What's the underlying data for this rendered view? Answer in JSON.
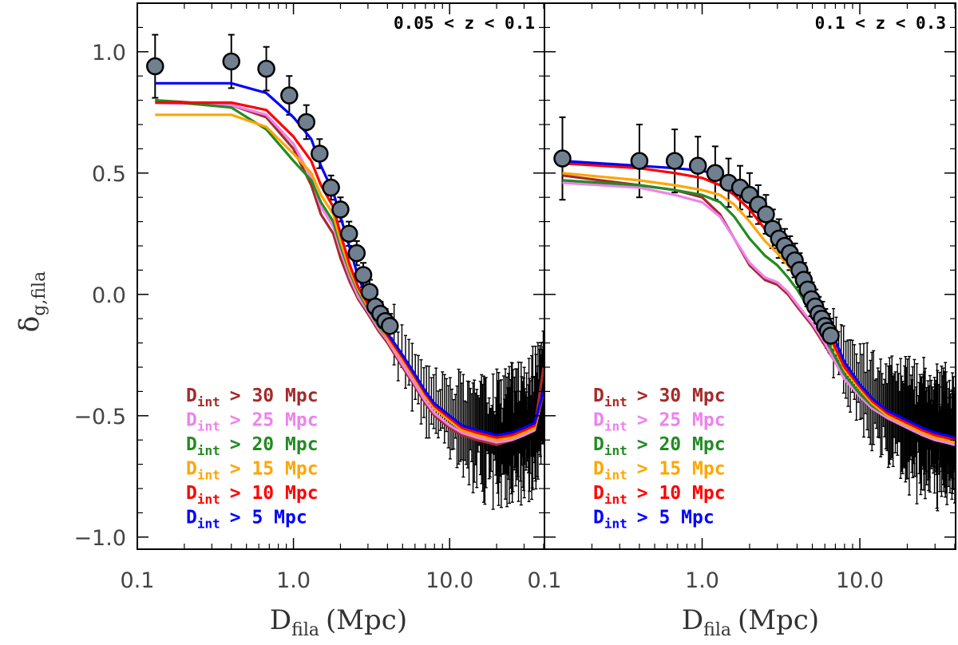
{
  "chart_data": {
    "type": "line",
    "ylabel": "δ",
    "ylabel_sub": "g,fila",
    "xlabel": "D",
    "xlabel_sub": "fila",
    "xlabel_unit": "(Mpc)",
    "xscale": "log",
    "ylim": [
      -1.05,
      1.2
    ],
    "y_ticks": [
      {
        "value": 1.0,
        "label": "1.0"
      },
      {
        "value": 0.5,
        "label": "0.5"
      },
      {
        "value": 0.0,
        "label": "0.0"
      },
      {
        "value": -0.5,
        "label": "−0.5"
      },
      {
        "value": -1.0,
        "label": "−1.0"
      }
    ],
    "legend_prefix": "D",
    "legend_sub": "int",
    "legend_placement": "bottom-left",
    "panels": [
      {
        "title": "0.05 < z < 0.1",
        "xlim": [
          0.1,
          40.5
        ],
        "x_ticks": [
          {
            "value": 0.1,
            "label": "0.1"
          },
          {
            "value": 1.0,
            "label": "1.0"
          },
          {
            "value": 10.0,
            "label": "10.0"
          }
        ],
        "observed": {
          "x": [
            0.13,
            0.4,
            0.67,
            0.94,
            1.21,
            1.47,
            1.74,
            2.0,
            2.27,
            2.54,
            2.8,
            3.07,
            3.34,
            3.6,
            3.87,
            4.14
          ],
          "y": [
            0.94,
            0.96,
            0.93,
            0.82,
            0.71,
            0.58,
            0.44,
            0.35,
            0.25,
            0.17,
            0.08,
            0.01,
            -0.05,
            -0.08,
            -0.11,
            -0.13
          ],
          "yerr": [
            0.13,
            0.11,
            0.09,
            0.08,
            0.07,
            0.06,
            0.05,
            0.05,
            0.05,
            0.05,
            0.05,
            0.05,
            0.05,
            0.05,
            0.05,
            0.05
          ]
        },
        "series": [
          {
            "name": "> 30 Mpc",
            "color": "#a52a2a",
            "x": [
              0.13,
              0.4,
              0.67,
              1.0,
              1.3,
              1.5,
              1.8,
              2.0,
              2.3,
              2.6,
              3.0,
              3.5,
              4.0,
              5.0,
              6.0,
              7.0,
              8.0,
              10.0,
              12.0,
              15.0,
              20.0,
              25.0,
              30.0,
              35.0,
              40.0
            ],
            "y": [
              0.8,
              0.78,
              0.73,
              0.6,
              0.45,
              0.33,
              0.25,
              0.15,
              0.05,
              -0.02,
              -0.08,
              -0.15,
              -0.2,
              -0.3,
              -0.38,
              -0.45,
              -0.5,
              -0.55,
              -0.58,
              -0.6,
              -0.62,
              -0.6,
              -0.58,
              -0.55,
              -0.3
            ]
          },
          {
            "name": "> 25 Mpc",
            "color": "#ee82ee",
            "x": [
              0.13,
              0.4,
              0.67,
              1.0,
              1.3,
              1.5,
              1.8,
              2.0,
              2.3,
              2.6,
              3.0,
              3.5,
              4.0,
              5.0,
              6.0,
              7.0,
              8.0,
              10.0,
              12.0,
              15.0,
              20.0,
              25.0,
              30.0,
              35.0,
              40.0
            ],
            "y": [
              0.79,
              0.78,
              0.74,
              0.62,
              0.48,
              0.36,
              0.28,
              0.18,
              0.07,
              -0.01,
              -0.07,
              -0.14,
              -0.19,
              -0.29,
              -0.37,
              -0.44,
              -0.49,
              -0.54,
              -0.57,
              -0.59,
              -0.61,
              -0.6,
              -0.58,
              -0.56,
              -0.4
            ]
          },
          {
            "name": "> 20 Mpc",
            "color": "#228b22",
            "x": [
              0.13,
              0.4,
              0.67,
              1.0,
              1.3,
              1.5,
              1.8,
              2.0,
              2.3,
              2.6,
              3.0,
              3.5,
              4.0,
              5.0,
              6.0,
              7.0,
              8.0,
              10.0,
              12.0,
              15.0,
              20.0,
              25.0,
              30.0,
              35.0,
              40.0
            ],
            "y": [
              0.8,
              0.77,
              0.68,
              0.55,
              0.47,
              0.38,
              0.3,
              0.2,
              0.09,
              0.01,
              -0.06,
              -0.13,
              -0.18,
              -0.27,
              -0.35,
              -0.42,
              -0.47,
              -0.52,
              -0.56,
              -0.58,
              -0.6,
              -0.59,
              -0.57,
              -0.55,
              -0.4
            ]
          },
          {
            "name": "> 15 Mpc",
            "color": "#ffa500",
            "x": [
              0.13,
              0.4,
              0.67,
              1.0,
              1.3,
              1.5,
              1.8,
              2.0,
              2.3,
              2.6,
              3.0,
              3.5,
              4.0,
              5.0,
              6.0,
              7.0,
              8.0,
              10.0,
              12.0,
              15.0,
              20.0,
              25.0,
              30.0,
              35.0,
              40.0
            ],
            "y": [
              0.74,
              0.74,
              0.69,
              0.58,
              0.5,
              0.41,
              0.33,
              0.22,
              0.1,
              0.02,
              -0.05,
              -0.12,
              -0.18,
              -0.27,
              -0.35,
              -0.42,
              -0.47,
              -0.52,
              -0.56,
              -0.58,
              -0.6,
              -0.59,
              -0.57,
              -0.55,
              -0.4
            ]
          },
          {
            "name": "> 10 Mpc",
            "color": "#ff0000",
            "x": [
              0.13,
              0.4,
              0.67,
              1.0,
              1.3,
              1.5,
              1.8,
              2.0,
              2.3,
              2.6,
              3.0,
              3.5,
              4.0,
              5.0,
              6.0,
              7.0,
              8.0,
              10.0,
              12.0,
              15.0,
              20.0,
              25.0,
              30.0,
              35.0,
              40.0
            ],
            "y": [
              0.79,
              0.79,
              0.76,
              0.65,
              0.55,
              0.45,
              0.36,
              0.25,
              0.12,
              0.03,
              -0.04,
              -0.11,
              -0.17,
              -0.26,
              -0.34,
              -0.41,
              -0.46,
              -0.51,
              -0.55,
              -0.57,
              -0.59,
              -0.58,
              -0.56,
              -0.54,
              -0.4
            ]
          },
          {
            "name": ">  5 Mpc",
            "color": "#0000ff",
            "x": [
              0.13,
              0.4,
              0.67,
              1.0,
              1.3,
              1.5,
              1.8,
              2.0,
              2.3,
              2.6,
              3.0,
              3.5,
              4.0,
              5.0,
              6.0,
              7.0,
              8.0,
              10.0,
              12.0,
              15.0,
              20.0,
              25.0,
              30.0,
              35.0,
              40.0
            ],
            "y": [
              0.87,
              0.87,
              0.83,
              0.73,
              0.64,
              0.53,
              0.42,
              0.32,
              0.19,
              0.07,
              -0.02,
              -0.1,
              -0.16,
              -0.25,
              -0.33,
              -0.4,
              -0.45,
              -0.5,
              -0.54,
              -0.56,
              -0.58,
              -0.57,
              -0.55,
              -0.53,
              -0.4
            ]
          }
        ]
      },
      {
        "title": "0.1 < z < 0.3",
        "xlim": [
          0.1,
          40.5
        ],
        "x_ticks": [
          {
            "value": 0.1,
            "label": "0.1"
          },
          {
            "value": 1.0,
            "label": "1.0"
          },
          {
            "value": 10.0,
            "label": "10.0"
          }
        ],
        "observed": {
          "x": [
            0.13,
            0.4,
            0.67,
            0.94,
            1.21,
            1.47,
            1.74,
            2.0,
            2.27,
            2.54,
            2.8,
            3.07,
            3.34,
            3.6,
            3.87,
            4.14,
            4.41,
            4.67,
            4.94,
            5.21,
            5.47,
            5.74,
            6.01,
            6.27,
            6.54
          ],
          "y": [
            0.56,
            0.55,
            0.55,
            0.53,
            0.5,
            0.46,
            0.44,
            0.41,
            0.37,
            0.33,
            0.27,
            0.23,
            0.2,
            0.17,
            0.14,
            0.1,
            0.06,
            0.02,
            -0.02,
            -0.05,
            -0.08,
            -0.1,
            -0.13,
            -0.15,
            -0.17
          ],
          "yerr": [
            0.17,
            0.15,
            0.13,
            0.12,
            0.11,
            0.1,
            0.09,
            0.09,
            0.08,
            0.08,
            0.08,
            0.08,
            0.07,
            0.07,
            0.07,
            0.07,
            0.07,
            0.07,
            0.07,
            0.07,
            0.07,
            0.07,
            0.07,
            0.07,
            0.07
          ]
        },
        "series": [
          {
            "name": "> 30 Mpc",
            "color": "#a52a2a",
            "x": [
              0.13,
              0.4,
              0.67,
              1.0,
              1.3,
              1.6,
              2.0,
              2.5,
              3.0,
              3.5,
              4.0,
              5.0,
              6.0,
              7.0,
              8.0,
              10.0,
              12.0,
              15.0,
              20.0,
              25.0,
              30.0,
              35.0,
              40.0
            ],
            "y": [
              0.49,
              0.45,
              0.43,
              0.4,
              0.33,
              0.23,
              0.12,
              0.06,
              0.04,
              0.0,
              -0.05,
              -0.13,
              -0.21,
              -0.28,
              -0.35,
              -0.42,
              -0.47,
              -0.51,
              -0.55,
              -0.58,
              -0.6,
              -0.61,
              -0.62
            ]
          },
          {
            "name": "> 25 Mpc",
            "color": "#ee82ee",
            "x": [
              0.13,
              0.4,
              0.67,
              1.0,
              1.3,
              1.6,
              2.0,
              2.5,
              3.0,
              3.5,
              4.0,
              5.0,
              6.0,
              7.0,
              8.0,
              10.0,
              12.0,
              15.0,
              20.0,
              25.0,
              30.0,
              35.0,
              40.0
            ],
            "y": [
              0.46,
              0.44,
              0.41,
              0.38,
              0.32,
              0.23,
              0.13,
              0.07,
              0.05,
              0.01,
              -0.04,
              -0.12,
              -0.2,
              -0.28,
              -0.35,
              -0.42,
              -0.47,
              -0.51,
              -0.55,
              -0.58,
              -0.6,
              -0.61,
              -0.62
            ]
          },
          {
            "name": "> 20 Mpc",
            "color": "#228b22",
            "x": [
              0.13,
              0.4,
              0.67,
              1.0,
              1.3,
              1.6,
              2.0,
              2.5,
              3.0,
              3.5,
              4.0,
              5.0,
              6.0,
              7.0,
              8.0,
              10.0,
              12.0,
              15.0,
              20.0,
              25.0,
              30.0,
              35.0,
              40.0
            ],
            "y": [
              0.47,
              0.45,
              0.43,
              0.41,
              0.38,
              0.32,
              0.23,
              0.16,
              0.12,
              0.07,
              0.02,
              -0.08,
              -0.17,
              -0.26,
              -0.33,
              -0.41,
              -0.46,
              -0.5,
              -0.54,
              -0.57,
              -0.59,
              -0.6,
              -0.61
            ]
          },
          {
            "name": "> 15 Mpc",
            "color": "#ffa500",
            "x": [
              0.13,
              0.4,
              0.67,
              1.0,
              1.3,
              1.6,
              2.0,
              2.5,
              3.0,
              3.5,
              4.0,
              5.0,
              6.0,
              7.0,
              8.0,
              10.0,
              12.0,
              15.0,
              20.0,
              25.0,
              30.0,
              35.0,
              40.0
            ],
            "y": [
              0.5,
              0.47,
              0.45,
              0.43,
              0.41,
              0.37,
              0.3,
              0.22,
              0.17,
              0.12,
              0.07,
              -0.04,
              -0.14,
              -0.23,
              -0.31,
              -0.39,
              -0.45,
              -0.5,
              -0.54,
              -0.57,
              -0.59,
              -0.6,
              -0.61
            ]
          },
          {
            "name": "> 10 Mpc",
            "color": "#ff0000",
            "x": [
              0.13,
              0.4,
              0.67,
              1.0,
              1.3,
              1.6,
              2.0,
              2.5,
              3.0,
              3.5,
              4.0,
              5.0,
              6.0,
              7.0,
              8.0,
              10.0,
              12.0,
              15.0,
              20.0,
              25.0,
              30.0,
              35.0,
              40.0
            ],
            "y": [
              0.54,
              0.52,
              0.5,
              0.48,
              0.45,
              0.41,
              0.35,
              0.27,
              0.21,
              0.15,
              0.09,
              -0.02,
              -0.12,
              -0.22,
              -0.3,
              -0.38,
              -0.44,
              -0.49,
              -0.53,
              -0.56,
              -0.58,
              -0.59,
              -0.6
            ]
          },
          {
            "name": ">  5 Mpc",
            "color": "#0000ff",
            "x": [
              0.13,
              0.4,
              0.67,
              1.0,
              1.3,
              1.6,
              2.0,
              2.5,
              3.0,
              3.5,
              4.0,
              5.0,
              6.0,
              7.0,
              8.0,
              10.0,
              12.0,
              15.0,
              20.0,
              25.0,
              30.0,
              35.0,
              40.0
            ],
            "y": [
              0.55,
              0.53,
              0.52,
              0.51,
              0.49,
              0.45,
              0.39,
              0.31,
              0.25,
              0.19,
              0.13,
              0.02,
              -0.09,
              -0.19,
              -0.28,
              -0.37,
              -0.43,
              -0.48,
              -0.52,
              -0.55,
              -0.57,
              -0.58,
              -0.59
            ]
          }
        ]
      }
    ]
  }
}
